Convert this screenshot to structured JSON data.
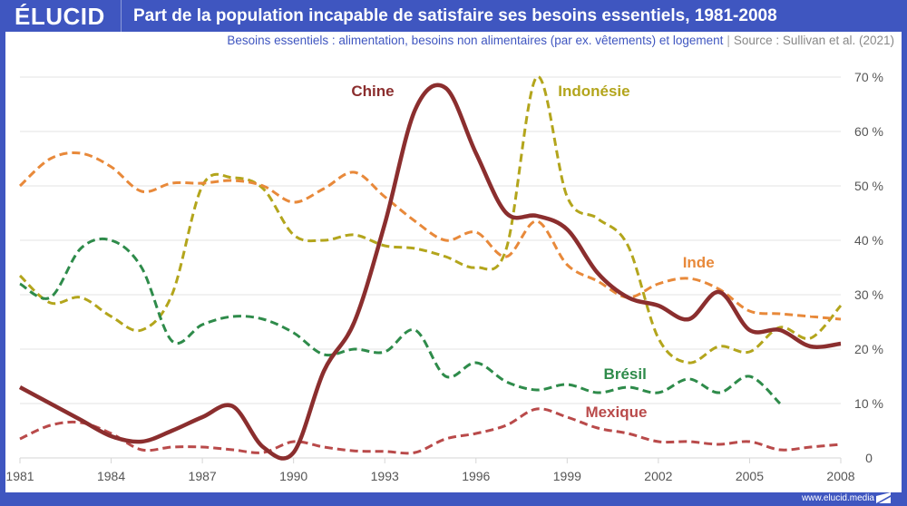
{
  "header": {
    "logo": "ÉLUCID",
    "title": "Part de la population incapable de satisfaire ses besoins essentiels, 1981-2008"
  },
  "subtitle": {
    "note": "Besoins essentiels : alimentation, besoins non alimentaires (par ex. vêtements) et logement",
    "separator": "|",
    "source": "Source : Sullivan et al. (2021)"
  },
  "footer": {
    "url": "www.elucid.media"
  },
  "colors": {
    "brand": "#3f56c0",
    "grid": "#e3e3e3",
    "axis_text": "#555555"
  },
  "chart_data": {
    "type": "line",
    "title": "Part de la population incapable de satisfaire ses besoins essentiels, 1981-2008",
    "xlabel": "",
    "ylabel": "",
    "xlim": [
      1981,
      2008
    ],
    "ylim": [
      0,
      70
    ],
    "grid": true,
    "x_ticks": [
      1981,
      1984,
      1987,
      1990,
      1993,
      1996,
      1999,
      2002,
      2005,
      2008
    ],
    "x_tick_labels": [
      "1981",
      "1984",
      "1987",
      "1990",
      "1993",
      "1996",
      "1999",
      "2002",
      "2005",
      "2008"
    ],
    "y_ticks": [
      0,
      10,
      20,
      30,
      40,
      50,
      60,
      70
    ],
    "y_tick_labels": [
      "0",
      "10 %",
      "20 %",
      "30 %",
      "40 %",
      "50 %",
      "60 %",
      "70 %"
    ],
    "y_axis_side": "right",
    "legend": "inline-labels",
    "series": [
      {
        "name": "Chine",
        "color": "#8b2e2e",
        "style": "solid",
        "x": [
          1981,
          1982,
          1983,
          1984,
          1985,
          1986,
          1987,
          1988,
          1989,
          1990,
          1991,
          1992,
          1993,
          1994,
          1995,
          1996,
          1997,
          1998,
          1999,
          2000,
          2001,
          2002,
          2003,
          2004,
          2005,
          2006,
          2007,
          2008
        ],
        "values": [
          13,
          10,
          7,
          4,
          3,
          5,
          7.5,
          9.5,
          2,
          1,
          16,
          25,
          43,
          64,
          68,
          56,
          45,
          44.5,
          42,
          34,
          29.5,
          28,
          25.5,
          30.5,
          23.5,
          23.5,
          20.5,
          21
        ],
        "label": {
          "text": "Chine",
          "x": 1991.9,
          "y": 66.5
        }
      },
      {
        "name": "Indonésie",
        "color": "#b3a51c",
        "style": "dashed",
        "x": [
          1981,
          1982,
          1983,
          1984,
          1985,
          1986,
          1987,
          1988,
          1989,
          1990,
          1991,
          1992,
          1993,
          1994,
          1995,
          1996,
          1997,
          1998,
          1999,
          2000,
          2001,
          2002,
          2003,
          2004,
          2005,
          2006,
          2007,
          2008
        ],
        "values": [
          33.5,
          28.5,
          29.5,
          26,
          23.5,
          30,
          50,
          51.5,
          49.5,
          41,
          40,
          41,
          39,
          38.5,
          37,
          35,
          38.5,
          70,
          48,
          44,
          39,
          22,
          17.5,
          20.5,
          19.5,
          24,
          22,
          28
        ],
        "label": {
          "text": "Indonésie",
          "x": 1998.7,
          "y": 66.5
        }
      },
      {
        "name": "Inde",
        "color": "#e8893a",
        "style": "dashed",
        "x": [
          1981,
          1982,
          1983,
          1984,
          1985,
          1986,
          1987,
          1988,
          1989,
          1990,
          1991,
          1992,
          1993,
          1994,
          1995,
          1996,
          1997,
          1998,
          1999,
          2000,
          2001,
          2002,
          2003,
          2004,
          2005,
          2006,
          2007,
          2008
        ],
        "values": [
          50,
          55,
          56,
          53.5,
          49,
          50.5,
          50.5,
          51,
          50,
          47,
          49.5,
          52.5,
          48,
          43.5,
          40,
          41.5,
          37,
          43.5,
          35.5,
          32.5,
          29.5,
          32,
          33,
          31,
          27,
          26.5,
          26,
          25.5
        ],
        "label": {
          "text": "Inde",
          "x": 2002.8,
          "y": 35
        }
      },
      {
        "name": "Brésil",
        "color": "#2e8b4a",
        "style": "dashed",
        "x": [
          1981,
          1982,
          1983,
          1984,
          1985,
          1986,
          1987,
          1988,
          1989,
          1990,
          1991,
          1992,
          1993,
          1994,
          1995,
          1996,
          1997,
          1998,
          1999,
          2000,
          2001,
          2002,
          2003,
          2004,
          2005,
          2006
        ],
        "values": [
          32,
          29.5,
          38.5,
          40,
          35,
          21.5,
          24.5,
          26,
          25.5,
          23,
          19,
          20,
          19.5,
          23.5,
          15,
          17.5,
          14,
          12.5,
          13.5,
          12,
          13,
          12,
          14.5,
          12,
          15,
          10
        ],
        "label": {
          "text": "Brésil",
          "x": 2000.2,
          "y": 14.5
        }
      },
      {
        "name": "Mexique",
        "color": "#b94a4a",
        "style": "dashed",
        "x": [
          1981,
          1982,
          1983,
          1984,
          1985,
          1986,
          1987,
          1988,
          1989,
          1990,
          1991,
          1992,
          1993,
          1994,
          1995,
          1996,
          1997,
          1998,
          1999,
          2000,
          2001,
          2002,
          2003,
          2004,
          2005,
          2006,
          2007,
          2008
        ],
        "values": [
          3.5,
          6,
          6.5,
          4.5,
          1.5,
          2,
          2,
          1.5,
          1,
          3,
          2,
          1.3,
          1.2,
          1,
          3.5,
          4.5,
          6,
          9,
          7.5,
          5.5,
          4.5,
          3,
          3,
          2.5,
          3,
          1.5,
          2,
          2.5
        ],
        "label": {
          "text": "Mexique",
          "x": 1999.6,
          "y": 7.5
        }
      }
    ]
  }
}
